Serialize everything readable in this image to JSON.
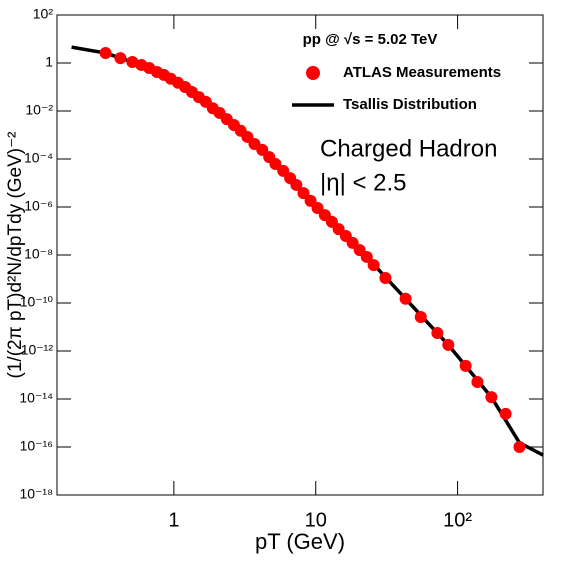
{
  "chart_data": {
    "type": "scatter",
    "x_label": "pT (GeV)",
    "y_label": "(1/(2π pT)d²N/dpTdy (GeV)⁻²",
    "header": "pp @ √s = 5.02 TeV",
    "annotations": [
      "Charged Hadron",
      "|η| < 2.5"
    ],
    "log_x": true,
    "log_y": true,
    "xlim": [
      0.15,
      400
    ],
    "ylim": [
      1e-18,
      100
    ],
    "xticks": [
      1,
      10,
      {
        "value": 100,
        "label": "10²"
      }
    ],
    "yticks": [
      {
        "value": 100,
        "label": "10²"
      },
      1,
      {
        "value": 0.01,
        "label": "10⁻²"
      },
      {
        "value": 0.0001,
        "label": "10⁻⁴"
      },
      {
        "value": 1e-06,
        "label": "10⁻⁶"
      },
      {
        "value": 1e-08,
        "label": "10⁻⁸"
      },
      {
        "value": 1e-10,
        "label": "10⁻¹⁰"
      },
      {
        "value": 1e-12,
        "label": "10⁻¹²"
      },
      {
        "value": 1e-14,
        "label": "10⁻¹⁴"
      },
      {
        "value": 1e-16,
        "label": "10⁻¹⁶"
      },
      {
        "value": 1e-18,
        "label": "10⁻¹⁸"
      }
    ],
    "legend_position": "upper right",
    "series": [
      {
        "name": "ATLAS Measurements",
        "type": "scatter",
        "color": "#ff0000",
        "x": [
          0.33,
          0.42,
          0.51,
          0.59,
          0.67,
          0.76,
          0.85,
          0.95,
          1.07,
          1.2,
          1.34,
          1.5,
          1.68,
          1.88,
          2.1,
          2.36,
          2.65,
          2.96,
          3.3,
          3.7,
          4.2,
          4.7,
          5.2,
          5.9,
          6.6,
          7.3,
          8.2,
          9.2,
          10.3,
          11.6,
          13,
          14.5,
          16.3,
          18.2,
          20.4,
          22.9,
          25.6,
          31,
          43,
          55,
          72,
          86,
          114,
          138,
          173,
          218,
          273
        ],
        "values": [
          2.6,
          1.6,
          1.1,
          0.83,
          0.62,
          0.42,
          0.32,
          0.22,
          0.15,
          0.1,
          0.062,
          0.038,
          0.024,
          0.013,
          0.0083,
          0.0046,
          0.0026,
          0.0015,
          0.00083,
          0.00042,
          0.00024,
          0.00012,
          6.2e-05,
          3.2e-05,
          1.6e-05,
          8.3e-06,
          3.8e-06,
          1.8e-06,
          9.1e-07,
          4.6e-07,
          2.4e-07,
          1.2e-07,
          6.2e-08,
          3.2e-08,
          1.6e-08,
          8.3e-09,
          3.8e-09,
          1.1e-09,
          1.5e-10,
          2.6e-11,
          5.6e-12,
          1.8e-12,
          2.4e-13,
          5.1e-14,
          1.2e-14,
          2.4e-15,
          1e-16
        ]
      },
      {
        "name": "Tsallis Distribution",
        "type": "line",
        "color": "#000000",
        "x": [
          0.19,
          0.33,
          0.59,
          0.95,
          1.5,
          2.36,
          3.7,
          5.9,
          9.2,
          14.5,
          22.9,
          43,
          86,
          173,
          273,
          400
        ],
        "values": [
          4.6,
          2.6,
          0.83,
          0.22,
          0.038,
          0.0046,
          0.00042,
          3.2e-05,
          1.8e-06,
          1.2e-07,
          8.3e-09,
          1.5e-10,
          1.8e-12,
          1.2e-14,
          1.5e-16,
          4.6e-17
        ]
      }
    ]
  }
}
